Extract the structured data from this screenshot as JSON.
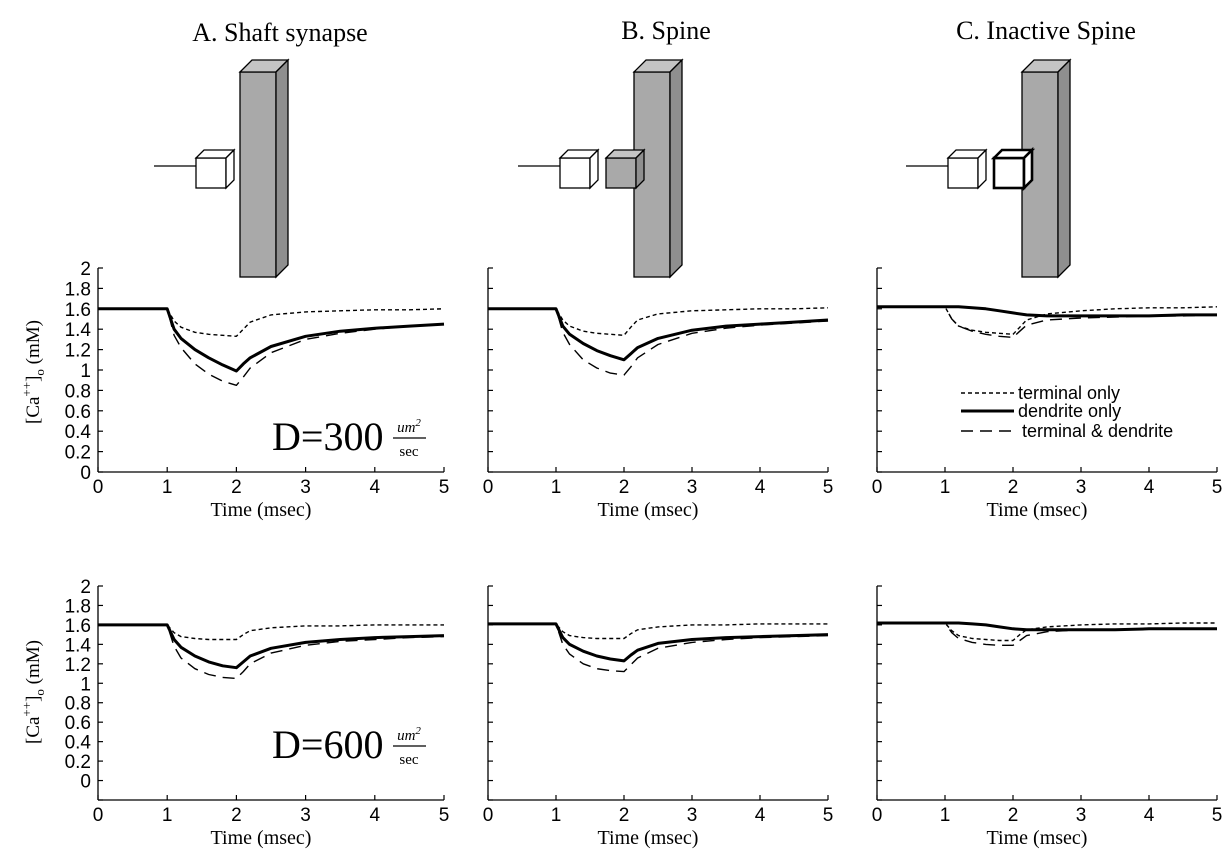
{
  "columns": [
    {
      "title": "A. Shaft synapse",
      "diagram": "shaft"
    },
    {
      "title": "B. Spine",
      "diagram": "spine"
    },
    {
      "title": "C. Inactive Spine",
      "diagram": "inactive"
    }
  ],
  "y_axis_label": "[Ca++]o (mM)",
  "y_axis_label_parts": {
    "base": "[Ca",
    "superscript": "++",
    "close": "]",
    "subscript": "o",
    "unit": " (mM)"
  },
  "x_axis_label": "Time (msec)",
  "legend": {
    "placement": "right-middle of panel C1",
    "entries": [
      {
        "label": "terminal only",
        "style": "short-dash"
      },
      {
        "label": "dendrite only",
        "style": "thick-solid"
      },
      {
        "label": "terminal & dendrite",
        "style": "long-dash"
      }
    ]
  },
  "row_annotations": [
    {
      "prefix": "D=",
      "value": "300",
      "unit_num": "um",
      "unit_sup": "2",
      "unit_den": "sec"
    },
    {
      "prefix": "D=",
      "value": "600",
      "unit_num": "um",
      "unit_sup": "2",
      "unit_den": "sec"
    }
  ],
  "chart_data": [
    {
      "type": "line",
      "panel": "A1",
      "row": 0,
      "col": 0,
      "xlabel": "Time (msec)",
      "ylabel": "[Ca++]o (mM)",
      "xlim": [
        0,
        5
      ],
      "ylim": [
        0,
        2
      ],
      "xticks": [
        0,
        1,
        2,
        3,
        4,
        5
      ],
      "yticks": [
        0,
        0.2,
        0.4,
        0.6,
        0.8,
        1,
        1.2,
        1.4,
        1.6,
        1.8,
        2
      ],
      "ytick_labels": [
        "0",
        "0.2",
        "0.4",
        "0.6",
        "0.8",
        "1",
        "1.2",
        "1.4",
        "1.6",
        "1.8",
        "2"
      ],
      "series": [
        {
          "name": "terminal only",
          "style": "short-dash",
          "x": [
            0,
            1,
            1.1,
            1.2,
            1.4,
            1.6,
            1.8,
            2,
            2.1,
            2.2,
            2.5,
            3,
            3.5,
            4,
            4.5,
            5
          ],
          "y": [
            1.6,
            1.6,
            1.48,
            1.42,
            1.37,
            1.35,
            1.34,
            1.33,
            1.4,
            1.47,
            1.54,
            1.57,
            1.58,
            1.59,
            1.59,
            1.6
          ]
        },
        {
          "name": "dendrite only",
          "style": "thick-solid",
          "x": [
            0,
            1,
            1.1,
            1.2,
            1.4,
            1.6,
            1.8,
            2,
            2.1,
            2.2,
            2.5,
            3,
            3.5,
            4,
            4.5,
            5
          ],
          "y": [
            1.6,
            1.6,
            1.4,
            1.31,
            1.2,
            1.12,
            1.05,
            0.99,
            1.06,
            1.12,
            1.23,
            1.33,
            1.38,
            1.41,
            1.43,
            1.45
          ]
        },
        {
          "name": "terminal & dendrite",
          "style": "long-dash",
          "x": [
            0,
            1,
            1.1,
            1.2,
            1.4,
            1.6,
            1.8,
            2,
            2.1,
            2.2,
            2.5,
            3,
            3.5,
            4,
            4.5,
            5
          ],
          "y": [
            1.6,
            1.6,
            1.34,
            1.22,
            1.06,
            0.96,
            0.89,
            0.85,
            0.93,
            1.02,
            1.17,
            1.3,
            1.36,
            1.4,
            1.43,
            1.45
          ]
        }
      ]
    },
    {
      "type": "line",
      "panel": "B1",
      "row": 0,
      "col": 1,
      "xlabel": "Time (msec)",
      "xlim": [
        0,
        5
      ],
      "ylim": [
        0,
        2
      ],
      "xticks": [
        0,
        1,
        2,
        3,
        4,
        5
      ],
      "yticks": [
        0,
        0.2,
        0.4,
        0.6,
        0.8,
        1,
        1.2,
        1.4,
        1.6,
        1.8,
        2
      ],
      "ytick_labels": [],
      "series": [
        {
          "name": "terminal only",
          "style": "short-dash",
          "x": [
            0,
            1,
            1.1,
            1.2,
            1.4,
            1.6,
            1.8,
            2,
            2.1,
            2.2,
            2.5,
            3,
            3.5,
            4,
            4.5,
            5
          ],
          "y": [
            1.6,
            1.6,
            1.49,
            1.43,
            1.38,
            1.36,
            1.35,
            1.34,
            1.42,
            1.49,
            1.55,
            1.58,
            1.59,
            1.6,
            1.6,
            1.61
          ]
        },
        {
          "name": "dendrite only",
          "style": "thick-solid",
          "x": [
            0,
            1,
            1.1,
            1.2,
            1.4,
            1.6,
            1.8,
            2,
            2.1,
            2.2,
            2.5,
            3,
            3.5,
            4,
            4.5,
            5
          ],
          "y": [
            1.6,
            1.6,
            1.43,
            1.35,
            1.26,
            1.19,
            1.14,
            1.1,
            1.16,
            1.22,
            1.31,
            1.39,
            1.43,
            1.45,
            1.47,
            1.49
          ]
        },
        {
          "name": "terminal & dendrite",
          "style": "long-dash",
          "x": [
            0,
            1,
            1.1,
            1.2,
            1.4,
            1.6,
            1.8,
            2,
            2.1,
            2.2,
            2.5,
            3,
            3.5,
            4,
            4.5,
            5
          ],
          "y": [
            1.6,
            1.6,
            1.37,
            1.25,
            1.1,
            1.02,
            0.97,
            0.95,
            1.03,
            1.12,
            1.25,
            1.36,
            1.41,
            1.44,
            1.46,
            1.48
          ]
        }
      ]
    },
    {
      "type": "line",
      "panel": "C1",
      "row": 0,
      "col": 2,
      "xlabel": "Time (msec)",
      "xlim": [
        0,
        5
      ],
      "ylim": [
        0,
        2
      ],
      "xticks": [
        0,
        1,
        2,
        3,
        4,
        5
      ],
      "yticks": [
        0,
        0.2,
        0.4,
        0.6,
        0.8,
        1,
        1.2,
        1.4,
        1.6,
        1.8,
        2
      ],
      "ytick_labels": [],
      "series": [
        {
          "name": "terminal only",
          "style": "short-dash",
          "x": [
            0,
            1,
            1.1,
            1.2,
            1.4,
            1.6,
            1.8,
            2,
            2.1,
            2.2,
            2.5,
            3,
            3.5,
            4,
            4.5,
            5
          ],
          "y": [
            1.62,
            1.62,
            1.5,
            1.43,
            1.39,
            1.37,
            1.36,
            1.35,
            1.42,
            1.49,
            1.55,
            1.58,
            1.6,
            1.61,
            1.61,
            1.62
          ]
        },
        {
          "name": "dendrite only",
          "style": "thick-solid",
          "x": [
            0,
            1,
            1.2,
            1.4,
            1.6,
            1.8,
            2,
            2.2,
            2.5,
            3,
            3.5,
            4,
            4.5,
            5
          ],
          "y": [
            1.62,
            1.62,
            1.62,
            1.61,
            1.6,
            1.58,
            1.56,
            1.54,
            1.53,
            1.53,
            1.53,
            1.53,
            1.54,
            1.54
          ]
        },
        {
          "name": "terminal & dendrite",
          "style": "long-dash",
          "x": [
            0,
            1,
            1.1,
            1.2,
            1.4,
            1.6,
            1.8,
            2,
            2.1,
            2.2,
            2.5,
            3,
            3.5,
            4,
            4.5,
            5
          ],
          "y": [
            1.62,
            1.62,
            1.5,
            1.43,
            1.38,
            1.35,
            1.33,
            1.32,
            1.38,
            1.44,
            1.49,
            1.51,
            1.52,
            1.53,
            1.53,
            1.54
          ]
        }
      ]
    },
    {
      "type": "line",
      "panel": "A2",
      "row": 1,
      "col": 0,
      "xlabel": "Time (msec)",
      "ylabel": "[Ca++]o (mM)",
      "xlim": [
        0,
        5
      ],
      "ylim": [
        -0.2,
        2
      ],
      "xticks": [
        0,
        1,
        2,
        3,
        4,
        5
      ],
      "yticks": [
        -0.2,
        0,
        0.2,
        0.4,
        0.6,
        0.8,
        1,
        1.2,
        1.4,
        1.6,
        1.8,
        2
      ],
      "ytick_labels": [
        "",
        "0",
        "0.2",
        "0.4",
        "0.6",
        "0.8",
        "1",
        "1.2",
        "1.4",
        "1.6",
        "1.8",
        "2"
      ],
      "series": [
        {
          "name": "terminal only",
          "style": "short-dash",
          "x": [
            0,
            1,
            1.1,
            1.2,
            1.4,
            1.6,
            1.8,
            2,
            2.1,
            2.2,
            2.5,
            3,
            3.5,
            4,
            4.5,
            5
          ],
          "y": [
            1.6,
            1.6,
            1.52,
            1.48,
            1.46,
            1.45,
            1.45,
            1.45,
            1.5,
            1.54,
            1.57,
            1.59,
            1.59,
            1.6,
            1.6,
            1.6
          ]
        },
        {
          "name": "dendrite only",
          "style": "thick-solid",
          "x": [
            0,
            1,
            1.1,
            1.2,
            1.4,
            1.6,
            1.8,
            2,
            2.1,
            2.2,
            2.5,
            3,
            3.5,
            4,
            4.5,
            5
          ],
          "y": [
            1.6,
            1.6,
            1.45,
            1.37,
            1.28,
            1.22,
            1.18,
            1.16,
            1.22,
            1.28,
            1.36,
            1.42,
            1.45,
            1.47,
            1.48,
            1.49
          ]
        },
        {
          "name": "terminal & dendrite",
          "style": "long-dash",
          "x": [
            0,
            1,
            1.1,
            1.2,
            1.4,
            1.6,
            1.8,
            2,
            2.1,
            2.2,
            2.5,
            3,
            3.5,
            4,
            4.5,
            5
          ],
          "y": [
            1.6,
            1.6,
            1.38,
            1.26,
            1.15,
            1.09,
            1.06,
            1.05,
            1.12,
            1.2,
            1.31,
            1.39,
            1.43,
            1.45,
            1.47,
            1.48
          ]
        }
      ]
    },
    {
      "type": "line",
      "panel": "B2",
      "row": 1,
      "col": 1,
      "xlabel": "Time (msec)",
      "xlim": [
        0,
        5
      ],
      "ylim": [
        -0.2,
        2
      ],
      "xticks": [
        0,
        1,
        2,
        3,
        4,
        5
      ],
      "yticks": [
        -0.2,
        0,
        0.2,
        0.4,
        0.6,
        0.8,
        1,
        1.2,
        1.4,
        1.6,
        1.8,
        2
      ],
      "ytick_labels": [],
      "series": [
        {
          "name": "terminal only",
          "style": "short-dash",
          "x": [
            0,
            1,
            1.1,
            1.2,
            1.4,
            1.6,
            1.8,
            2,
            2.1,
            2.2,
            2.5,
            3,
            3.5,
            4,
            4.5,
            5
          ],
          "y": [
            1.61,
            1.61,
            1.53,
            1.49,
            1.47,
            1.46,
            1.46,
            1.46,
            1.51,
            1.55,
            1.58,
            1.6,
            1.6,
            1.61,
            1.61,
            1.61
          ]
        },
        {
          "name": "dendrite only",
          "style": "thick-solid",
          "x": [
            0,
            1,
            1.1,
            1.2,
            1.4,
            1.6,
            1.8,
            2,
            2.1,
            2.2,
            2.5,
            3,
            3.5,
            4,
            4.5,
            5
          ],
          "y": [
            1.61,
            1.61,
            1.47,
            1.4,
            1.33,
            1.28,
            1.25,
            1.23,
            1.29,
            1.34,
            1.41,
            1.45,
            1.47,
            1.48,
            1.49,
            1.5
          ]
        },
        {
          "name": "terminal & dendrite",
          "style": "long-dash",
          "x": [
            0,
            1,
            1.1,
            1.2,
            1.4,
            1.6,
            1.8,
            2,
            2.1,
            2.2,
            2.5,
            3,
            3.5,
            4,
            4.5,
            5
          ],
          "y": [
            1.61,
            1.61,
            1.4,
            1.3,
            1.2,
            1.15,
            1.13,
            1.12,
            1.19,
            1.26,
            1.36,
            1.42,
            1.45,
            1.47,
            1.48,
            1.49
          ]
        }
      ]
    },
    {
      "type": "line",
      "panel": "C2",
      "row": 1,
      "col": 2,
      "xlabel": "Time (msec)",
      "xlim": [
        0,
        5
      ],
      "ylim": [
        -0.2,
        2
      ],
      "xticks": [
        0,
        1,
        2,
        3,
        4,
        5
      ],
      "yticks": [
        -0.2,
        0,
        0.2,
        0.4,
        0.6,
        0.8,
        1,
        1.2,
        1.4,
        1.6,
        1.8,
        2
      ],
      "ytick_labels": [],
      "series": [
        {
          "name": "terminal only",
          "style": "short-dash",
          "x": [
            0,
            1,
            1.1,
            1.2,
            1.4,
            1.6,
            1.8,
            2,
            2.1,
            2.2,
            2.5,
            3,
            3.5,
            4,
            4.5,
            5
          ],
          "y": [
            1.62,
            1.62,
            1.54,
            1.49,
            1.46,
            1.45,
            1.44,
            1.44,
            1.5,
            1.55,
            1.58,
            1.6,
            1.61,
            1.61,
            1.62,
            1.62
          ]
        },
        {
          "name": "dendrite only",
          "style": "thick-solid",
          "x": [
            0,
            1,
            1.2,
            1.4,
            1.6,
            1.8,
            2,
            2.2,
            2.5,
            3,
            3.5,
            4,
            4.5,
            5
          ],
          "y": [
            1.62,
            1.62,
            1.62,
            1.61,
            1.6,
            1.58,
            1.56,
            1.55,
            1.55,
            1.55,
            1.55,
            1.56,
            1.56,
            1.56
          ]
        },
        {
          "name": "terminal & dendrite",
          "style": "long-dash",
          "x": [
            0,
            1,
            1.1,
            1.2,
            1.4,
            1.6,
            1.8,
            2,
            2.1,
            2.2,
            2.5,
            3,
            3.5,
            4,
            4.5,
            5
          ],
          "y": [
            1.62,
            1.62,
            1.52,
            1.46,
            1.42,
            1.4,
            1.39,
            1.39,
            1.44,
            1.49,
            1.53,
            1.55,
            1.55,
            1.56,
            1.56,
            1.56
          ]
        }
      ]
    }
  ]
}
